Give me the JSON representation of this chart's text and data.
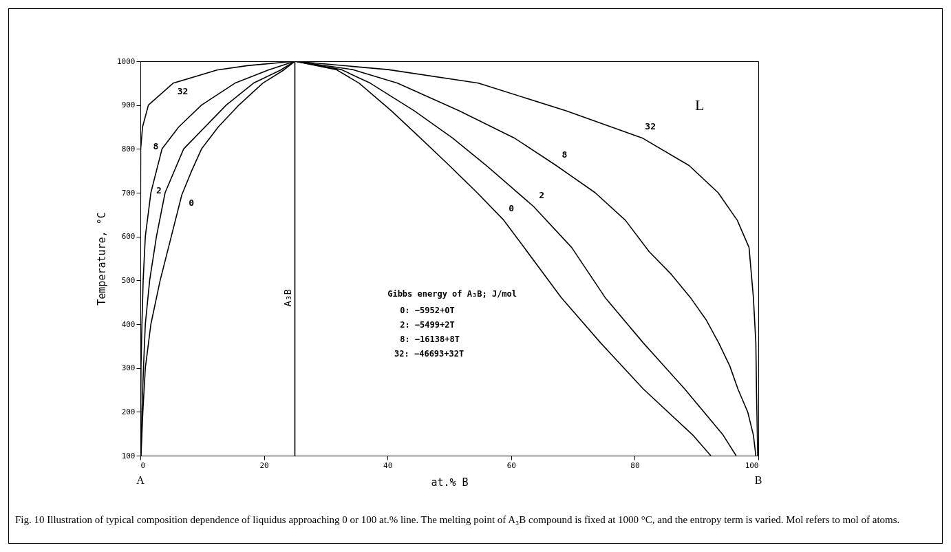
{
  "chart_data": {
    "type": "line",
    "xlabel": "at.% B",
    "ylabel": "Temperature, °C",
    "xlim": [
      0,
      100
    ],
    "xticks": [
      0,
      20,
      40,
      60,
      80,
      100
    ],
    "ylim": [
      100,
      1000
    ],
    "yticks": [
      100,
      200,
      300,
      400,
      500,
      600,
      700,
      800,
      900,
      1000
    ],
    "series": [
      {
        "name": "0",
        "color": "#000000",
        "x": [
          0.1,
          0.4,
          0.8,
          1.7,
          3.2,
          5.0,
          6.7,
          8.3,
          9.9,
          12.6,
          15.8,
          19.8,
          23.2,
          25,
          31.7,
          35.4,
          40.6,
          45.3,
          50.0,
          54.5,
          58.7,
          62.1,
          68.1,
          74.5,
          81.4,
          89.4,
          92.3
        ],
        "values": [
          100,
          200,
          300,
          400,
          500,
          600,
          695,
          750,
          800,
          850,
          898,
          950,
          980,
          1000,
          981,
          950,
          887,
          825,
          762,
          700,
          639,
          575,
          461,
          357,
          252,
          147,
          100
        ]
      },
      {
        "name": "2",
        "color": "#000000",
        "x": [
          0.1,
          0.25,
          0.5,
          0.8,
          1.5,
          2.6,
          4.0,
          7.0,
          13.9,
          18.3,
          22.7,
          25,
          32.5,
          37.2,
          44.3,
          50.5,
          56.0,
          63.6,
          69.8,
          75.2,
          81.4,
          88.1,
          94.3,
          96.4
        ],
        "values": [
          100,
          200,
          300,
          400,
          500,
          600,
          700,
          800,
          900,
          950,
          980,
          1000,
          981,
          950,
          887,
          825,
          762,
          669,
          575,
          461,
          357,
          252,
          147,
          100
        ]
      },
      {
        "name": "8",
        "color": "#000000",
        "x": [
          0,
          0.1,
          0.25,
          0.45,
          0.8,
          1.7,
          3.5,
          6.2,
          9.9,
          15.3,
          20.7,
          25,
          34.3,
          41.6,
          51.6,
          60.5,
          67.3,
          73.6,
          78.5,
          82.3,
          85.9,
          89.0,
          91.6,
          93.6,
          95.4,
          96.7,
          98.3,
          99.2,
          99.6
        ],
        "values": [
          100,
          300,
          400,
          500,
          600,
          700,
          800,
          850,
          900,
          950,
          980,
          1000,
          981,
          950,
          887,
          825,
          762,
          700,
          637,
          566,
          514,
          461,
          409,
          357,
          304,
          252,
          199,
          147,
          100
        ]
      },
      {
        "name": "32",
        "color": "#000000",
        "x": [
          0,
          0,
          0.05,
          0.35,
          1.3,
          5.3,
          12.4,
          17.3,
          25,
          40.1,
          54.7,
          68.9,
          81.2,
          88.8,
          93.5,
          96.6,
          98.5,
          99.2,
          99.6,
          99.7,
          99.9
        ],
        "values": [
          100,
          500,
          800,
          850,
          900,
          950,
          980,
          990,
          1000,
          981,
          950,
          887,
          825,
          762,
          700,
          637,
          575,
          461,
          357,
          252,
          100
        ]
      }
    ],
    "ref_lines": [
      {
        "axis": "x",
        "value": 25,
        "label": "A₃B"
      }
    ],
    "annotations": [
      "L",
      "Gibbs energy of A₃B; J/mol",
      "0: −5952+0T",
      "2: −5499+2T",
      "8: −16138+8T",
      "32: −46693+32T",
      "A",
      "B",
      "Fig. 10 Illustration of typical composition dependence of liquidus approaching 0 or 100 at.% line. The melting point of A₃B compound is fixed at 1000 °C, and the entropy term is varied. Mol refers to mol of atoms."
    ]
  }
}
